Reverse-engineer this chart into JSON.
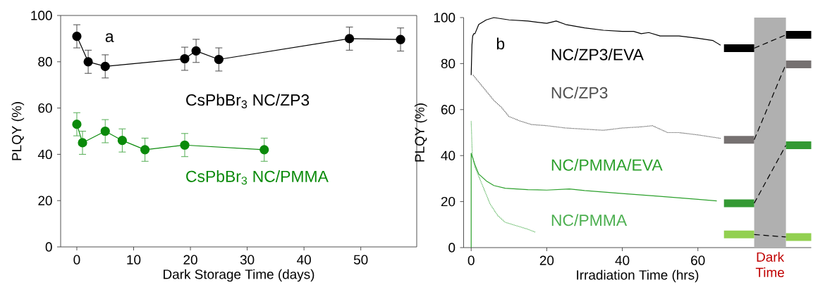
{
  "chart_data": [
    {
      "type": "line",
      "xlabel": "Dark Storage Time (days)",
      "ylabel": "PLQY (%)",
      "xlim": [
        -2.85,
        59.85
      ],
      "ylim": [
        0,
        100
      ],
      "xticks": [
        0,
        10,
        20,
        30,
        40,
        50
      ],
      "yticks": [
        0,
        20,
        40,
        60,
        80,
        100
      ],
      "marker": "circle",
      "annotations": [
        "a"
      ],
      "series": [
        {
          "name": "CsPbBr$_{3}$ NC/ZP3",
          "color": "#000000",
          "x": [
            0,
            2,
            5,
            19,
            21,
            25,
            48,
            57
          ],
          "values": [
            91,
            80,
            78,
            81.3,
            84.7,
            81,
            90,
            89.6
          ],
          "errors": [
            5,
            5,
            5,
            5,
            5,
            5,
            5,
            5
          ]
        },
        {
          "name": "CsPbBr$_{3}$ NC/PMMA",
          "color": "#0a8a0a",
          "x": [
            0,
            1,
            5,
            8,
            12,
            19,
            33
          ],
          "values": [
            53,
            45,
            50,
            46,
            42,
            44,
            42
          ],
          "errors": [
            5,
            5,
            5,
            5,
            5,
            5,
            5
          ]
        }
      ]
    },
    {
      "type": "line",
      "xlabel": "Irradiation Time (hrs)",
      "ylabel": "PLQY (%)",
      "xlim": [
        -2,
        90
      ],
      "ylim": [
        0,
        100
      ],
      "xticks": [
        0,
        20,
        40,
        60
      ],
      "yticks": [
        0,
        20,
        40,
        60,
        80,
        100
      ],
      "annotations": [
        "b"
      ],
      "bands": [
        {
          "axis": "x",
          "from": 74.9,
          "to": 83.3,
          "label": "Dark Time",
          "color": "#b0b0b0"
        }
      ],
      "series": [
        {
          "name": "NC/ZP3/EVA",
          "color": "#000000",
          "line_style": "solid",
          "x": [
            0,
            0.2,
            0.4,
            0.7,
            1,
            2,
            4,
            6,
            10,
            15,
            20,
            22.5,
            25,
            30,
            35,
            40,
            43,
            45,
            47,
            50,
            55,
            60,
            64,
            66
          ],
          "values": [
            75,
            88,
            92,
            93,
            93,
            97,
            99,
            100,
            99,
            98.5,
            97.5,
            98.5,
            97,
            95.5,
            94.5,
            94,
            94,
            93,
            93.5,
            92,
            92,
            91,
            90,
            88
          ]
        },
        {
          "name": "NC/ZP3",
          "color": "#505050",
          "line_style": "dotted",
          "x": [
            0.5,
            2,
            4,
            6,
            8,
            10,
            13,
            16,
            20,
            25,
            30,
            35,
            40,
            45,
            48,
            52,
            55,
            60,
            66
          ],
          "values": [
            75,
            72,
            68,
            64,
            61,
            57,
            55,
            53.5,
            53,
            52,
            51.5,
            51,
            52,
            52.5,
            53,
            50,
            50,
            49,
            47.5
          ]
        },
        {
          "name": "NC/PMMA/EVA",
          "color": "#2ca02c",
          "line_style": "solid",
          "x": [
            0,
            0,
            1,
            2,
            4,
            6,
            9,
            15,
            20,
            26,
            30,
            40,
            50,
            60,
            65
          ],
          "values": [
            0,
            41,
            36,
            32,
            29,
            27,
            25.8,
            25.2,
            25,
            25.5,
            24.8,
            23.5,
            22.3,
            21,
            20.3
          ]
        },
        {
          "name": "NC/PMMA",
          "color": "#4caf50",
          "line_style": "dotted",
          "x": [
            0,
            0.3,
            1,
            3,
            5,
            7,
            9,
            12,
            15,
            17
          ],
          "values": [
            55,
            40,
            35,
            27,
            19,
            14,
            11,
            9.5,
            8,
            6.7
          ]
        },
        {
          "type": "step",
          "color": "#000000",
          "x": [
            66.9,
            74.9
          ],
          "values": [
            86.7,
            86.7
          ]
        },
        {
          "type": "step",
          "color": "#767171",
          "x": [
            66.9,
            74.9
          ],
          "values": [
            46.9,
            46.9
          ]
        },
        {
          "type": "step",
          "color": "#339933",
          "x": [
            66.9,
            74.9
          ],
          "values": [
            19.3,
            19.3
          ]
        },
        {
          "type": "step",
          "color": "#92d050",
          "x": [
            66.9,
            74.9
          ],
          "values": [
            5.7,
            5.7
          ]
        },
        {
          "line_style": "dashed",
          "color": "#000000",
          "x": [
            74.9,
            83.3
          ],
          "values": [
            86.7,
            92.5
          ]
        },
        {
          "line_style": "dashed",
          "color": "#000000",
          "x": [
            74.9,
            83.3
          ],
          "values": [
            46.9,
            79.7
          ]
        },
        {
          "line_style": "dashed",
          "color": "#000000",
          "x": [
            74.9,
            83.3
          ],
          "values": [
            19.3,
            44.5
          ]
        },
        {
          "line_style": "dashed",
          "color": "#000000",
          "x": [
            74.9,
            83.3
          ],
          "values": [
            5.7,
            4.6
          ]
        },
        {
          "type": "step",
          "color": "#000000",
          "x": [
            83.3,
            90
          ],
          "values": [
            92.5,
            92.5
          ]
        },
        {
          "type": "step",
          "color": "#767171",
          "x": [
            83.3,
            90
          ],
          "values": [
            79.7,
            79.7
          ]
        },
        {
          "type": "step",
          "color": "#339933",
          "x": [
            83.3,
            90
          ],
          "values": [
            44.5,
            44.5
          ]
        },
        {
          "type": "step",
          "color": "#92d050",
          "x": [
            83.3,
            90
          ],
          "values": [
            4.6,
            4.6
          ]
        }
      ]
    }
  ]
}
